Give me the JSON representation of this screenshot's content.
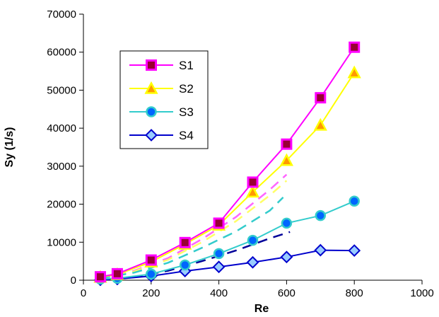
{
  "chart_data": {
    "type": "line",
    "title": "",
    "xlabel": "Re",
    "ylabel": "Sy (1/s)",
    "xlim": [
      0,
      1000
    ],
    "ylim": [
      0,
      70000
    ],
    "x_ticks": [
      "0",
      "200",
      "400",
      "600",
      "800",
      "1000"
    ],
    "y_ticks": [
      "0",
      "10000",
      "20000",
      "30000",
      "40000",
      "50000",
      "60000",
      "70000"
    ],
    "grid": false,
    "legend_position": "upper-left inside plot",
    "series": [
      {
        "name": "S1",
        "color": "#ff00ff",
        "marker": "square",
        "marker_fill": "#990033",
        "x": [
          50,
          100,
          200,
          300,
          400,
          500,
          600,
          700,
          800
        ],
        "values": [
          900,
          1700,
          5300,
          9900,
          15000,
          25800,
          35800,
          48000,
          61300
        ]
      },
      {
        "name": "S2",
        "color": "#ffff00",
        "marker": "triangle",
        "marker_fill": "#ff9900",
        "x": [
          50,
          100,
          200,
          300,
          400,
          500,
          600,
          700,
          800
        ],
        "values": [
          800,
          1500,
          4800,
          9500,
          14500,
          23200,
          31500,
          40800,
          54600
        ]
      },
      {
        "name": "S3",
        "color": "#33cccc",
        "marker": "circle",
        "marker_fill": "#0066ff",
        "x": [
          50,
          100,
          200,
          300,
          400,
          500,
          600,
          700,
          800
        ],
        "values": [
          300,
          500,
          1600,
          4000,
          7000,
          10500,
          15000,
          17000,
          20800
        ]
      },
      {
        "name": "S4",
        "color": "#0000cc",
        "marker": "diamond",
        "marker_fill": "#99ccff",
        "x": [
          50,
          100,
          200,
          300,
          400,
          500,
          600,
          700,
          800
        ],
        "values": [
          100,
          300,
          1100,
          2400,
          3500,
          4700,
          6100,
          7900,
          7800
        ]
      }
    ],
    "fit_lines": [
      {
        "color": "#ff66ff",
        "x": [
          50,
          150,
          250,
          350,
          450,
          550,
          600
        ],
        "values": [
          700,
          2500,
          5800,
          10800,
          16600,
          23800,
          27800
        ]
      },
      {
        "color": "#ffff66",
        "x": [
          50,
          150,
          250,
          350,
          450,
          550,
          600
        ],
        "values": [
          600,
          2300,
          5400,
          10000,
          15500,
          22300,
          26200
        ]
      },
      {
        "color": "#33cccc",
        "x": [
          50,
          150,
          250,
          350,
          450,
          550,
          590
        ],
        "values": [
          500,
          2000,
          4600,
          8500,
          12800,
          18300,
          21800
        ]
      },
      {
        "color": "#000099",
        "x": [
          50,
          150,
          250,
          350,
          450,
          550,
          610
        ],
        "values": [
          100,
          800,
          2500,
          5000,
          7800,
          11000,
          12700
        ]
      }
    ]
  }
}
